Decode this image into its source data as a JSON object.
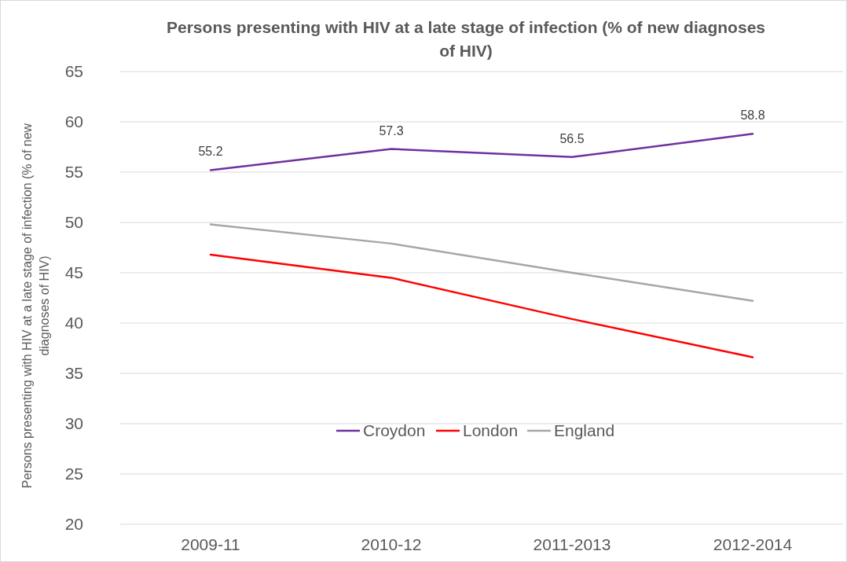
{
  "chart_data": {
    "type": "line",
    "title": "Persons presenting with HIV at a late stage of infection (% of new diagnoses of HIV)",
    "ylabel": "Persons presenting with HIV at a late stage of infection (% of new diagnoses of HIV)",
    "categories": [
      "2009-11",
      "2010-12",
      "2011-2013",
      "2012-2014"
    ],
    "series": [
      {
        "name": "Croydon",
        "color": "#7030a0",
        "values": [
          55.2,
          57.3,
          56.5,
          58.8
        ],
        "value_labels": [
          "55.2",
          "57.3",
          "56.5",
          "58.8"
        ]
      },
      {
        "name": "London",
        "color": "#ff0000",
        "values": [
          46.8,
          44.5,
          40.4,
          36.6
        ]
      },
      {
        "name": "England",
        "color": "#a6a6a6",
        "values": [
          49.8,
          47.9,
          45.0,
          42.2
        ]
      }
    ],
    "ylim": [
      20,
      65
    ],
    "yticks": [
      20,
      25,
      30,
      35,
      40,
      45,
      50,
      55,
      60,
      65
    ],
    "grid": "y",
    "legend": "bottom",
    "marker": "none",
    "line_style": "solid"
  }
}
